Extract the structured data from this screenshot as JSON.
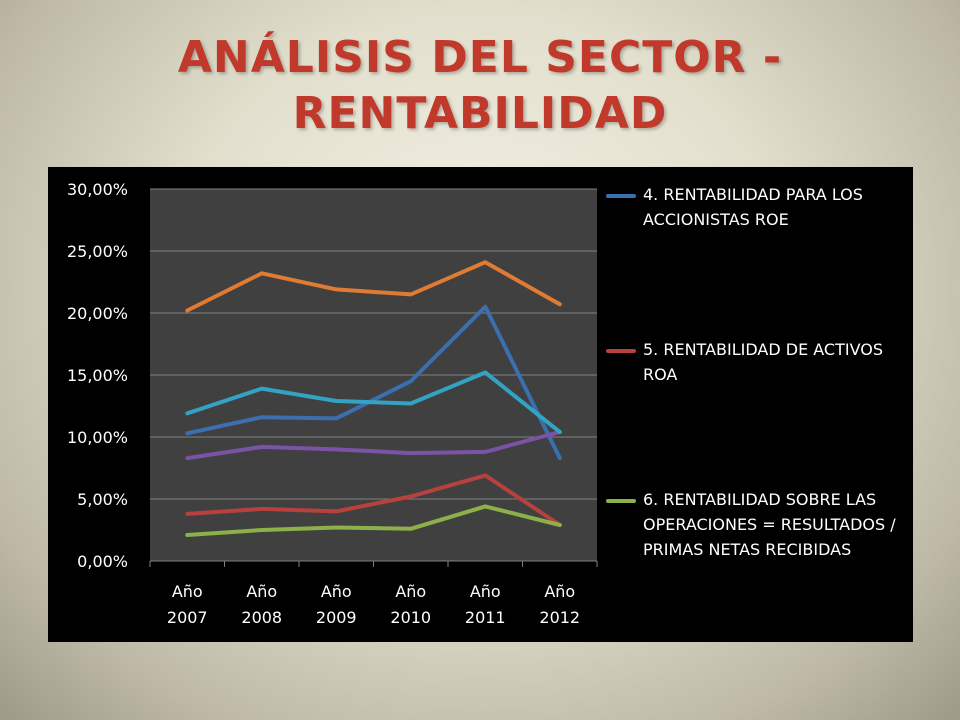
{
  "title": {
    "line1": "ANÁLISIS DEL SECTOR  -",
    "line2": "RENTABILIDAD"
  },
  "colors": {
    "title": "#c0392b",
    "chart_background": "#000000",
    "plot_background": "#404040",
    "gridline": "#808080"
  },
  "chart_data": {
    "type": "line",
    "title": "",
    "xlabel": "",
    "ylabel": "",
    "categories": [
      "Año 2007",
      "Año 2008",
      "Año 2009",
      "Año 2010",
      "Año 2011",
      "Año 2012"
    ],
    "y_ticks": [
      "30,00%",
      "25,00%",
      "20,00%",
      "15,00%",
      "10,00%",
      "5,00%",
      "0,00%"
    ],
    "ylim": [
      0,
      30
    ],
    "grid": true,
    "legend_position": "right",
    "series": [
      {
        "name": "4. RENTABILIDAD PARA LOS ACCIONISTAS ROE",
        "color": "#3a6fb0",
        "values": [
          10.3,
          11.6,
          11.5,
          14.5,
          20.5,
          8.3
        ],
        "in_legend": true
      },
      {
        "name": "5. RENTABILIDAD DE ACTIVOS ROA",
        "color": "#b8403e",
        "values": [
          3.8,
          4.2,
          4.0,
          5.2,
          6.9,
          2.9
        ],
        "in_legend": true
      },
      {
        "name": "6. RENTABILIDAD SOBRE LAS OPERACIONES = RESULTADOS / PRIMAS NETAS RECIBIDAS",
        "color": "#8db04a",
        "values": [
          2.1,
          2.5,
          2.7,
          2.6,
          4.4,
          2.9
        ],
        "in_legend": true
      },
      {
        "name": "",
        "color": "#7b52a6",
        "values": [
          8.3,
          9.2,
          9.0,
          8.7,
          8.8,
          10.4
        ],
        "in_legend": false
      },
      {
        "name": "",
        "color": "#33a3c4",
        "values": [
          11.9,
          13.9,
          12.9,
          12.7,
          15.2,
          10.4
        ],
        "in_legend": false
      },
      {
        "name": "",
        "color": "#e07b34",
        "values": [
          20.2,
          23.2,
          21.9,
          21.5,
          24.1,
          20.7
        ],
        "in_legend": false
      }
    ]
  }
}
